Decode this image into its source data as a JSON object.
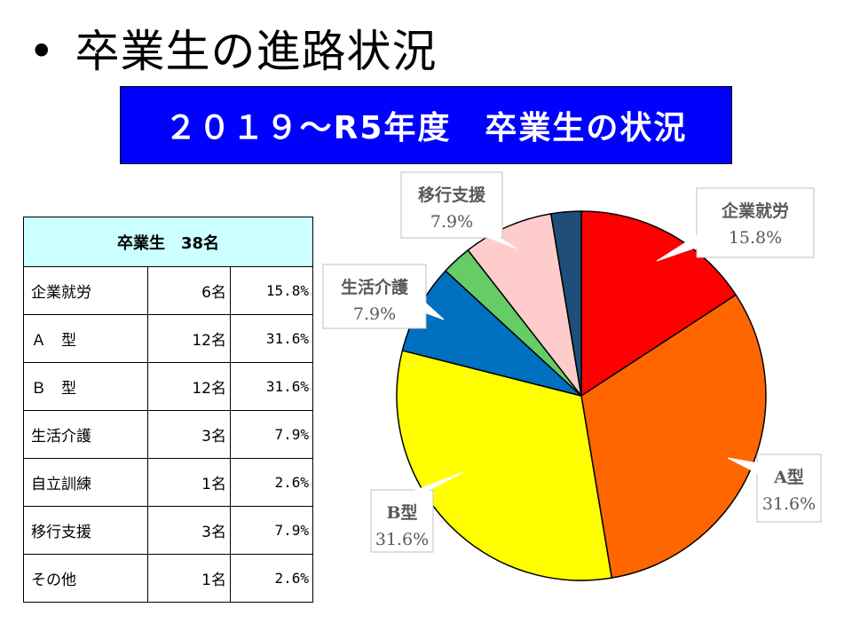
{
  "slide": {
    "bullet": "•",
    "title": "卒業生の進路状況",
    "banner": "２０１９～R5年度　卒業生の状況"
  },
  "table": {
    "header": "卒業生　38名",
    "rows": [
      {
        "label": "企業就労",
        "count": "6名",
        "percent": "15.8%"
      },
      {
        "label": "Ａ　型",
        "count": "12名",
        "percent": "31.6%"
      },
      {
        "label": "Ｂ　型",
        "count": "12名",
        "percent": "31.6%"
      },
      {
        "label": "生活介護",
        "count": "3名",
        "percent": "7.9%"
      },
      {
        "label": "自立訓練",
        "count": "1名",
        "percent": "2.6%"
      },
      {
        "label": "移行支援",
        "count": "3名",
        "percent": "7.9%"
      },
      {
        "label": "その他",
        "count": "1名",
        "percent": "2.6%"
      }
    ]
  },
  "chart_data": {
    "type": "pie",
    "title": "",
    "start": "12 o'clock, clockwise",
    "slices": [
      {
        "name": "企業就労",
        "value": 6,
        "label_pct": "15.8%",
        "color": "#ff0000",
        "labeled": true
      },
      {
        "name": "A型",
        "value": 12,
        "label_pct": "31.6%",
        "color": "#ff6600",
        "labeled": true
      },
      {
        "name": "B型",
        "value": 12,
        "label_pct": "31.6%",
        "color": "#ffff00",
        "labeled": true
      },
      {
        "name": "生活介護",
        "value": 3,
        "label_pct": "7.9%",
        "color": "#0070c0",
        "labeled": true
      },
      {
        "name": "自立訓練",
        "value": 1,
        "label_pct": "2.6%",
        "color": "#66cc66",
        "labeled": false
      },
      {
        "name": "移行支援",
        "value": 3,
        "label_pct": "7.9%",
        "color": "#ffcccc",
        "labeled": true
      },
      {
        "name": "その他",
        "value": 1,
        "label_pct": "2.6%",
        "color": "#1f4e79",
        "labeled": false
      }
    ]
  }
}
